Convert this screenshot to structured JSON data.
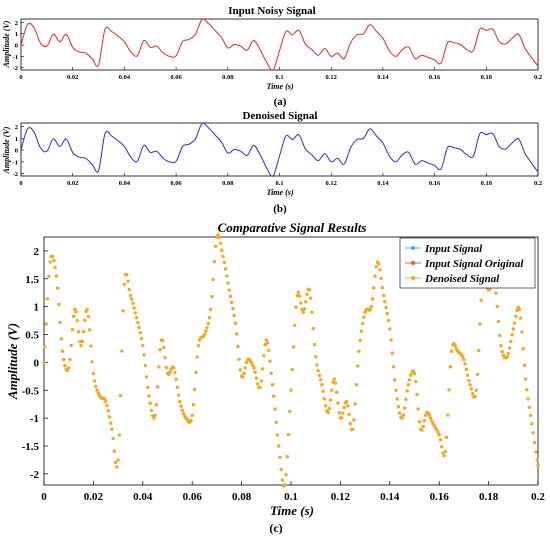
{
  "figure": {
    "panels": [
      {
        "title": "Input Noisy Signal",
        "caption": "(a)",
        "xlabel": "Time (s)",
        "ylabel": "Amplitude (V)",
        "xticks": [
          "0",
          "0.02",
          "0.04",
          "0.06",
          "0.08",
          "0.1",
          "0.12",
          "0.14",
          "0.16",
          "0.18",
          "0.2"
        ],
        "yticks": [
          "2",
          "1",
          "0",
          "-1",
          "-2"
        ],
        "color": "#e8262a"
      },
      {
        "title": "Denoised Signal",
        "caption": "(b)",
        "xlabel": "Time (s)",
        "ylabel": "Amplitude (V)",
        "xticks": [
          "0",
          "0.02",
          "0.04",
          "0.06",
          "0.08",
          "0.1",
          "0.12",
          "0.14",
          "0.16",
          "0.18",
          "0.2"
        ],
        "yticks": [
          "2",
          "1",
          "0",
          "-1",
          "-2"
        ],
        "color": "#2b2bd6"
      },
      {
        "title": "Comparative Signal Results",
        "caption": "(c)",
        "xlabel": "Time (s)",
        "ylabel": "Amplitude (V)",
        "xticks": [
          "0",
          "0.02",
          "0.04",
          "0.06",
          "0.08",
          "0.1",
          "0.12",
          "0.14",
          "0.16",
          "0.18",
          "0.2"
        ],
        "yticks": [
          "2",
          "1.5",
          "1",
          "0.5",
          "0",
          "-0.5",
          "-1",
          "-1.5",
          "-2"
        ],
        "legend": [
          "Input Signal",
          "Input Signal Original",
          "Denoised Signal"
        ],
        "legend_colors": [
          "#4aa8d8",
          "#e0602a",
          "#f5a623"
        ]
      }
    ]
  },
  "chart_data": [
    {
      "type": "line",
      "title": "Input Noisy Signal",
      "xlabel": "Time (s)",
      "ylabel": "Amplitude (V)",
      "xlim": [
        0,
        0.2
      ],
      "ylim": [
        -2.2,
        2.3
      ],
      "x": [
        0,
        0.0025,
        0.005,
        0.0075,
        0.01,
        0.0125,
        0.015,
        0.0175,
        0.02,
        0.0225,
        0.025,
        0.0275,
        0.03,
        0.0325,
        0.035,
        0.0375,
        0.04,
        0.0425,
        0.045,
        0.0475,
        0.05,
        0.0525,
        0.055,
        0.0575,
        0.06,
        0.0625,
        0.065,
        0.0675,
        0.07,
        0.0725,
        0.075,
        0.0775,
        0.08,
        0.0825,
        0.085,
        0.0875,
        0.09,
        0.0925,
        0.095,
        0.0975,
        0.1,
        0.1025,
        0.105,
        0.1075,
        0.11,
        0.1125,
        0.115,
        0.1175,
        0.12,
        0.1225,
        0.125,
        0.1275,
        0.13,
        0.1325,
        0.135,
        0.1375,
        0.14,
        0.1425,
        0.145,
        0.1475,
        0.15,
        0.1525,
        0.155,
        0.1575,
        0.16,
        0.1625,
        0.165,
        0.1675,
        0.17,
        0.1725,
        0.175,
        0.1775,
        0.18,
        0.1825,
        0.185,
        0.1875,
        0.19,
        0.1925,
        0.195,
        0.1975,
        0.2
      ],
      "series": [
        {
          "values": [
            0,
            1.8,
            1.55,
            0.2,
            -0.1,
            0.95,
            0.3,
            0.95,
            -0.2,
            -0.6,
            -0.7,
            -1.2,
            -1.75,
            1.4,
            1.2,
            0.8,
            0.3,
            -0.6,
            -0.95,
            0.4,
            -0.2,
            -0.1,
            -0.7,
            -1.0,
            -0.95,
            0.3,
            0.5,
            0.95,
            2.25,
            1.9,
            1.3,
            0.7,
            -0.25,
            0.05,
            -0.1,
            -0.45,
            0.4,
            -0.4,
            -1.5,
            -2.2,
            -0.5,
            1.2,
            0.9,
            1.3,
            0.1,
            -0.4,
            -0.9,
            -0.3,
            -1.0,
            -0.7,
            -1.2,
            0.2,
            0.9,
            1.0,
            1.8,
            1.2,
            0.6,
            -0.5,
            -1.0,
            -0.4,
            -0.2,
            -1.2,
            -0.9,
            -1.1,
            -1.3,
            -1.6,
            0.2,
            0.2,
            0.05,
            -0.4,
            -0.5,
            1.4,
            1.3,
            1.4,
            0.3,
            0.1,
            0.6,
            0.95,
            -0.3,
            -1.1,
            -1.85
          ]
        }
      ]
    },
    {
      "type": "line",
      "title": "Denoised Signal",
      "xlabel": "Time (s)",
      "ylabel": "Amplitude (V)",
      "xlim": [
        0,
        0.2
      ],
      "ylim": [
        -2.2,
        2.3
      ],
      "x": [
        0,
        0.0025,
        0.005,
        0.0075,
        0.01,
        0.0125,
        0.015,
        0.0175,
        0.02,
        0.0225,
        0.025,
        0.0275,
        0.03,
        0.0325,
        0.035,
        0.0375,
        0.04,
        0.0425,
        0.045,
        0.0475,
        0.05,
        0.0525,
        0.055,
        0.0575,
        0.06,
        0.0625,
        0.065,
        0.0675,
        0.07,
        0.0725,
        0.075,
        0.0775,
        0.08,
        0.0825,
        0.085,
        0.0875,
        0.09,
        0.0925,
        0.095,
        0.0975,
        0.1,
        0.1025,
        0.105,
        0.1075,
        0.11,
        0.1125,
        0.115,
        0.1175,
        0.12,
        0.1225,
        0.125,
        0.1275,
        0.13,
        0.1325,
        0.135,
        0.1375,
        0.14,
        0.1425,
        0.145,
        0.1475,
        0.15,
        0.1525,
        0.155,
        0.1575,
        0.16,
        0.1625,
        0.165,
        0.1675,
        0.17,
        0.1725,
        0.175,
        0.1775,
        0.18,
        0.1825,
        0.185,
        0.1875,
        0.19,
        0.1925,
        0.195,
        0.1975,
        0.2
      ],
      "series": [
        {
          "values": [
            0,
            1.8,
            1.55,
            0.2,
            -0.1,
            0.95,
            0.3,
            0.95,
            -0.2,
            -0.6,
            -0.7,
            -1.2,
            -1.75,
            1.4,
            1.2,
            0.8,
            0.3,
            -0.6,
            -0.95,
            0.4,
            -0.2,
            -0.1,
            -0.7,
            -1.0,
            -0.95,
            0.3,
            0.5,
            0.95,
            2.25,
            1.9,
            1.3,
            0.7,
            -0.25,
            0.05,
            -0.1,
            -0.45,
            0.4,
            -0.4,
            -1.5,
            -2.2,
            -0.5,
            1.2,
            0.9,
            1.3,
            0.1,
            -0.4,
            -0.9,
            -0.3,
            -1.0,
            -0.7,
            -1.2,
            0.2,
            0.9,
            1.0,
            1.8,
            1.2,
            0.6,
            -0.5,
            -1.0,
            -0.4,
            -0.2,
            -1.2,
            -0.9,
            -1.1,
            -1.3,
            -1.6,
            0.2,
            0.2,
            0.05,
            -0.4,
            -0.5,
            1.4,
            1.3,
            1.4,
            0.3,
            0.1,
            0.6,
            0.95,
            -0.3,
            -1.1,
            -1.85
          ]
        }
      ]
    },
    {
      "type": "scatter",
      "title": "Comparative Signal Results",
      "xlabel": "Time (s)",
      "ylabel": "Amplitude (V)",
      "xlim": [
        0,
        0.2
      ],
      "ylim": [
        -2.2,
        2.25
      ],
      "legend_position": "top-right",
      "x": [
        0,
        0.0025,
        0.005,
        0.0075,
        0.01,
        0.0125,
        0.015,
        0.0175,
        0.02,
        0.0225,
        0.025,
        0.0275,
        0.03,
        0.0325,
        0.035,
        0.0375,
        0.04,
        0.0425,
        0.045,
        0.0475,
        0.05,
        0.0525,
        0.055,
        0.0575,
        0.06,
        0.0625,
        0.065,
        0.0675,
        0.07,
        0.0725,
        0.075,
        0.0775,
        0.08,
        0.0825,
        0.085,
        0.0875,
        0.09,
        0.0925,
        0.095,
        0.0975,
        0.1,
        0.1025,
        0.105,
        0.1075,
        0.11,
        0.1125,
        0.115,
        0.1175,
        0.12,
        0.1225,
        0.125,
        0.1275,
        0.13,
        0.1325,
        0.135,
        0.1375,
        0.14,
        0.1425,
        0.145,
        0.1475,
        0.15,
        0.1525,
        0.155,
        0.1575,
        0.16,
        0.1625,
        0.165,
        0.1675,
        0.17,
        0.1725,
        0.175,
        0.1775,
        0.18,
        0.1825,
        0.185,
        0.1875,
        0.19,
        0.1925,
        0.195,
        0.1975,
        0.2
      ],
      "series": [
        {
          "name": "Input Signal",
          "values": [
            0,
            1.8,
            1.55,
            0.2,
            -0.1,
            0.95,
            0.3,
            0.95,
            -0.2,
            -0.6,
            -0.7,
            -1.2,
            -1.75,
            1.4,
            1.2,
            0.8,
            0.3,
            -0.6,
            -0.95,
            0.4,
            -0.2,
            -0.1,
            -0.7,
            -1.0,
            -0.95,
            0.3,
            0.5,
            0.95,
            2.25,
            1.9,
            1.3,
            0.7,
            -0.25,
            0.05,
            -0.1,
            -0.45,
            0.4,
            -0.4,
            -1.5,
            -2.2,
            -0.5,
            1.2,
            0.9,
            1.3,
            0.1,
            -0.4,
            -0.9,
            -0.3,
            -1.0,
            -0.7,
            -1.2,
            0.2,
            0.9,
            1.0,
            1.8,
            1.2,
            0.6,
            -0.5,
            -1.0,
            -0.4,
            -0.2,
            -1.2,
            -0.9,
            -1.1,
            -1.3,
            -1.6,
            0.2,
            0.2,
            0.05,
            -0.4,
            -0.5,
            1.4,
            1.3,
            1.4,
            0.3,
            0.1,
            0.6,
            0.95,
            -0.3,
            -1.1,
            -1.85
          ]
        },
        {
          "name": "Input Signal Original",
          "values": [
            0,
            1.8,
            1.55,
            0.2,
            -0.1,
            0.95,
            0.3,
            0.95,
            -0.2,
            -0.6,
            -0.7,
            -1.2,
            -1.75,
            1.4,
            1.2,
            0.8,
            0.3,
            -0.6,
            -0.95,
            0.4,
            -0.2,
            -0.1,
            -0.7,
            -1.0,
            -0.95,
            0.3,
            0.5,
            0.95,
            2.25,
            1.9,
            1.3,
            0.7,
            -0.25,
            0.05,
            -0.1,
            -0.45,
            0.4,
            -0.4,
            -1.5,
            -2.2,
            -0.5,
            1.2,
            0.9,
            1.3,
            0.1,
            -0.4,
            -0.9,
            -0.3,
            -1.0,
            -0.7,
            -1.2,
            0.2,
            0.9,
            1.0,
            1.8,
            1.2,
            0.6,
            -0.5,
            -1.0,
            -0.4,
            -0.2,
            -1.2,
            -0.9,
            -1.1,
            -1.3,
            -1.6,
            0.2,
            0.2,
            0.05,
            -0.4,
            -0.5,
            1.4,
            1.3,
            1.4,
            0.3,
            0.1,
            0.6,
            0.95,
            -0.3,
            -1.1,
            -1.85
          ]
        },
        {
          "name": "Denoised Signal",
          "values": [
            0,
            1.8,
            1.55,
            0.2,
            -0.1,
            0.95,
            0.3,
            0.95,
            -0.2,
            -0.6,
            -0.7,
            -1.2,
            -1.75,
            1.4,
            1.2,
            0.8,
            0.3,
            -0.6,
            -0.95,
            0.4,
            -0.2,
            -0.1,
            -0.7,
            -1.0,
            -0.95,
            0.3,
            0.5,
            0.95,
            2.25,
            1.9,
            1.3,
            0.7,
            -0.25,
            0.05,
            -0.1,
            -0.45,
            0.4,
            -0.4,
            -1.5,
            -2.2,
            -0.5,
            1.2,
            0.9,
            1.3,
            0.1,
            -0.4,
            -0.9,
            -0.3,
            -1.0,
            -0.7,
            -1.2,
            0.2,
            0.9,
            1.0,
            1.8,
            1.2,
            0.6,
            -0.5,
            -1.0,
            -0.4,
            -0.2,
            -1.2,
            -0.9,
            -1.1,
            -1.3,
            -1.6,
            0.2,
            0.2,
            0.05,
            -0.4,
            -0.5,
            1.4,
            1.3,
            1.4,
            0.3,
            0.1,
            0.6,
            0.95,
            -0.3,
            -1.1,
            -1.85
          ]
        }
      ]
    }
  ]
}
